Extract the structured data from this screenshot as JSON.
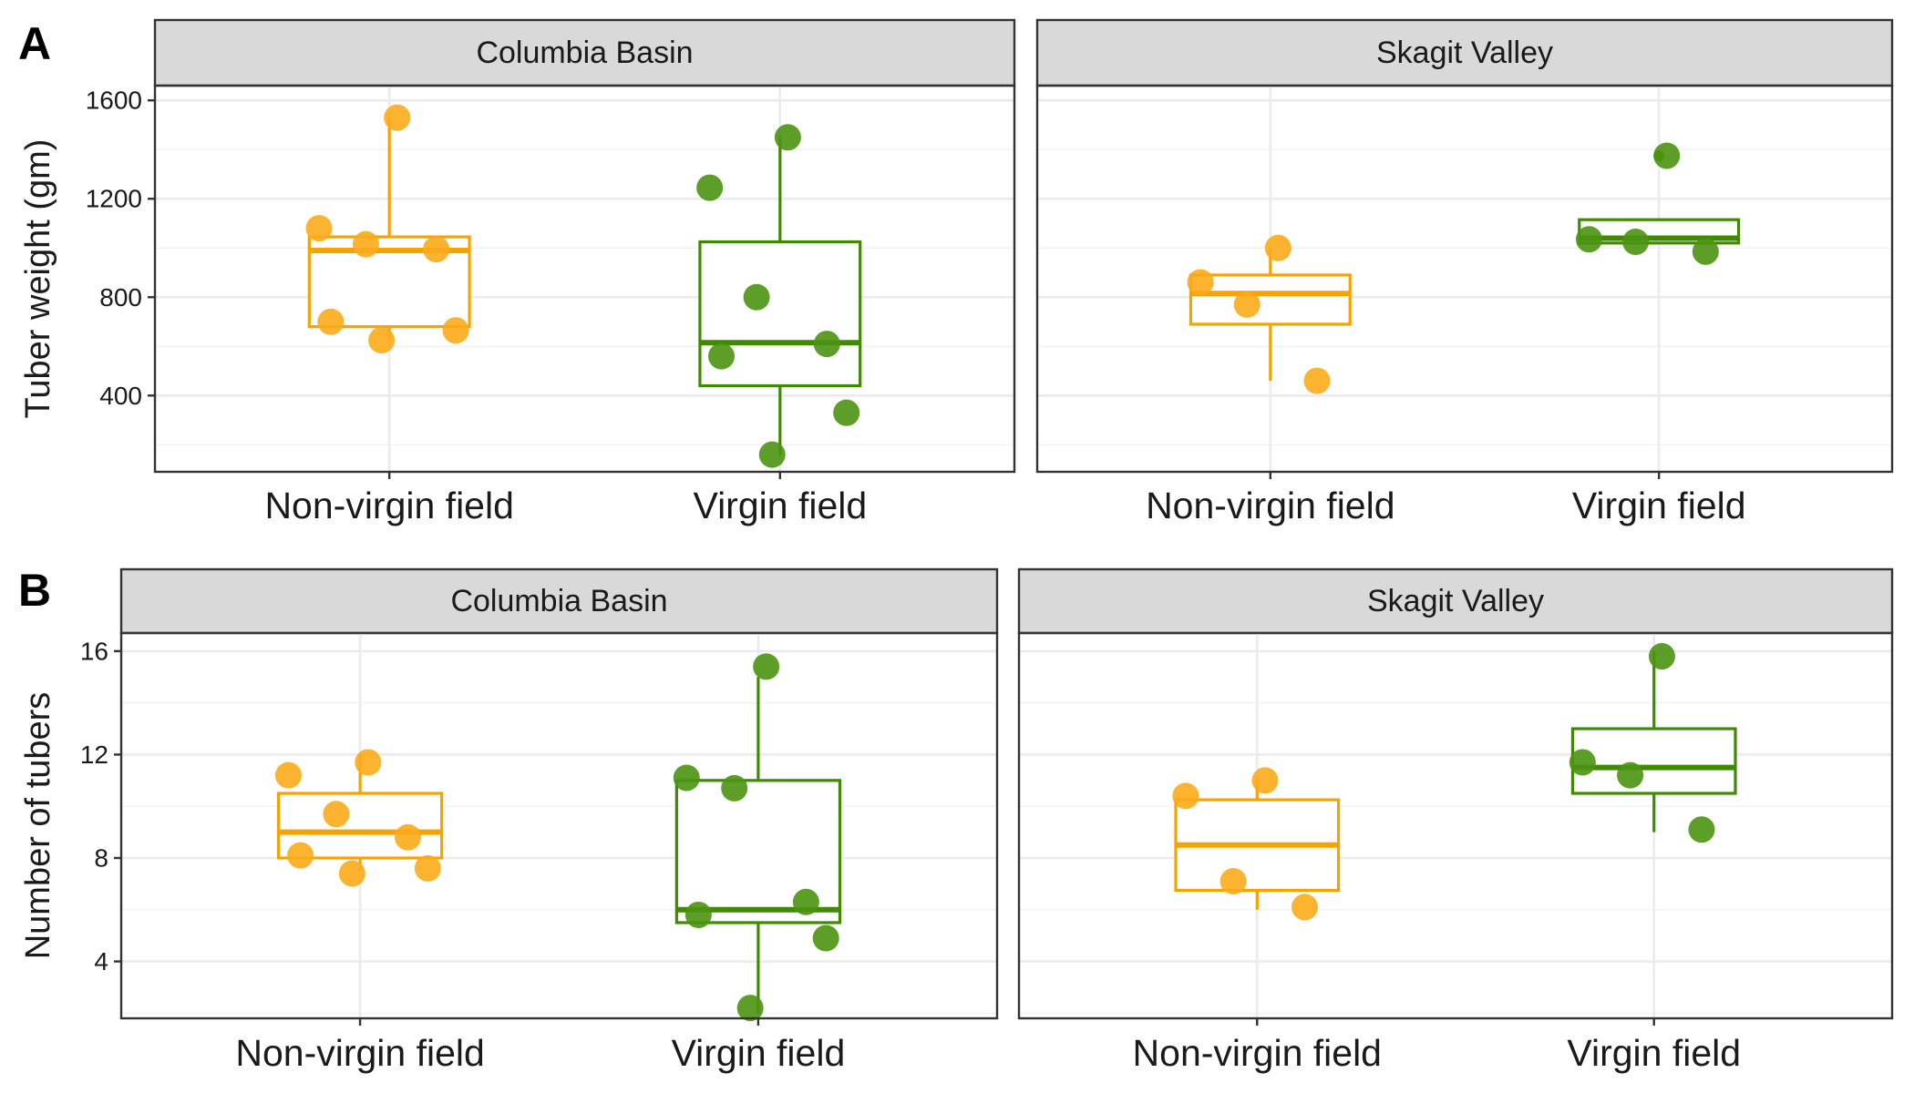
{
  "colors": {
    "Non-virgin field": "#f5a300",
    "Virgin field": "#3f8a00",
    "Non-virgin field_point": "#fbab19",
    "Virgin field_point": "#4b9412"
  },
  "chart_data": [
    {
      "tag": "A",
      "type": "box",
      "ylabel": "Tuber weight (gm)",
      "ylim": [
        90,
        1660
      ],
      "yticks": [
        400,
        800,
        1200,
        1600
      ],
      "categories": [
        "Non-virgin field",
        "Virgin field"
      ],
      "panels": [
        {
          "title": "Columbia Basin",
          "boxes": [
            {
              "category": "Non-virgin field",
              "whisker_low": 625,
              "q1": 680,
              "median": 990,
              "q3": 1045,
              "whisker_high": 1530,
              "points": [
                1530,
                1080,
                1015,
                995,
                700,
                665,
                625
              ]
            },
            {
              "category": "Virgin field",
              "whisker_low": 160,
              "q1": 440,
              "median": 615,
              "q3": 1025,
              "whisker_high": 1450,
              "points": [
                1450,
                1245,
                800,
                610,
                560,
                330,
                160
              ]
            }
          ]
        },
        {
          "title": "Skagit Valley",
          "boxes": [
            {
              "category": "Non-virgin field",
              "whisker_low": 460,
              "q1": 690,
              "median": 815,
              "q3": 890,
              "whisker_high": 1000,
              "points": [
                1000,
                860,
                770,
                460
              ]
            },
            {
              "category": "Virgin field",
              "whisker_low": 1020,
              "q1": 1020,
              "median": 1040,
              "q3": 1115,
              "whisker_high": 1115,
              "points": [
                1375,
                1035,
                1025,
                985
              ],
              "outliers": [
                1375
              ]
            }
          ]
        }
      ]
    },
    {
      "tag": "B",
      "type": "box",
      "ylabel": "Number of tubers",
      "ylim": [
        1.8,
        16.7
      ],
      "yticks": [
        4,
        8,
        12,
        16
      ],
      "categories": [
        "Non-virgin field",
        "Virgin field"
      ],
      "panels": [
        {
          "title": "Columbia Basin",
          "boxes": [
            {
              "category": "Non-virgin field",
              "whisker_low": 7.5,
              "q1": 8,
              "median": 9,
              "q3": 10.5,
              "whisker_high": 12,
              "points": [
                11.7,
                11.2,
                9.7,
                8.8,
                8.1,
                7.6,
                7.4
              ]
            },
            {
              "category": "Virgin field",
              "whisker_low": 2,
              "q1": 5.5,
              "median": 6,
              "q3": 11,
              "whisker_high": 15,
              "points": [
                15.4,
                11.1,
                10.7,
                6.3,
                5.8,
                4.9,
                2.2
              ]
            }
          ]
        },
        {
          "title": "Skagit Valley",
          "boxes": [
            {
              "category": "Non-virgin field",
              "whisker_low": 6,
              "q1": 6.75,
              "median": 8.5,
              "q3": 10.25,
              "whisker_high": 11,
              "points": [
                11,
                10.4,
                7.1,
                6.1
              ]
            },
            {
              "category": "Virgin field",
              "whisker_low": 9,
              "q1": 10.5,
              "median": 11.5,
              "q3": 13,
              "whisker_high": 16,
              "points": [
                15.8,
                11.7,
                11.2,
                9.1
              ]
            }
          ]
        }
      ]
    }
  ]
}
